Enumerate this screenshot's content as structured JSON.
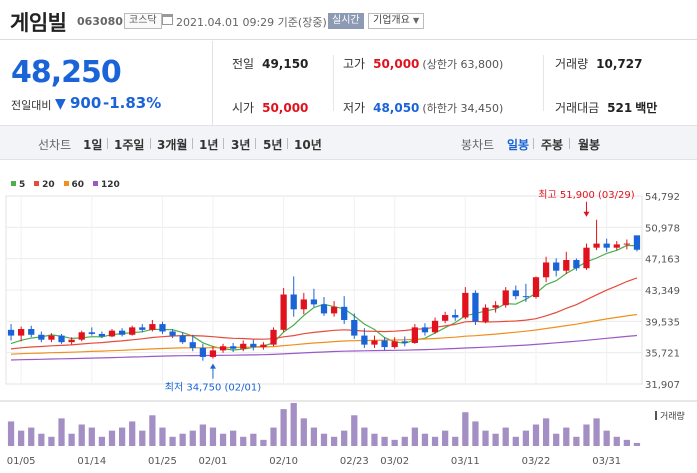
{
  "header": {
    "name": "게임빌",
    "code": "063080",
    "market": "코스닥",
    "datetime": "2021.04.01 09:29 기준(장중)",
    "realtime": "실시간",
    "company_info": "기업개요"
  },
  "summary": {
    "price": "48,250",
    "change_label": "전일대비",
    "change_value": "900",
    "change_pct": "-1.83%",
    "prev_close_label": "전일",
    "prev_close": "49,150",
    "high_label": "고가",
    "high": "50,000",
    "upper_limit": "(상한가 63,800)",
    "volume_label": "거래량",
    "volume": "10,727",
    "open_label": "시가",
    "open": "50,000",
    "low_label": "저가",
    "low": "48,050",
    "lower_limit": "(하한가 34,450)",
    "amount_label": "거래대금",
    "amount": "521",
    "amount_unit": "백만"
  },
  "periods": {
    "line_label": "선차트",
    "line_items": [
      "1일",
      "1주일",
      "3개월",
      "1년",
      "3년",
      "5년",
      "10년"
    ],
    "candle_label": "봉차트",
    "candle_items": [
      "일봉",
      "주봉",
      "월봉"
    ],
    "active": "일봉"
  },
  "legend": [
    {
      "label": "5",
      "color": "#4cae4c"
    },
    {
      "label": "20",
      "color": "#e64c3c"
    },
    {
      "label": "60",
      "color": "#f0901e"
    },
    {
      "label": "120",
      "color": "#9b59c8"
    }
  ],
  "chart_data": {
    "type": "candlestick",
    "y_ticks": [
      "54,792",
      "50,978",
      "47,163",
      "43,349",
      "39,535",
      "35,721",
      "31,907"
    ],
    "ylim": [
      31907,
      54792
    ],
    "x_ticks": [
      {
        "label": "01/05",
        "index": 1
      },
      {
        "label": "01/14",
        "index": 8
      },
      {
        "label": "01/25",
        "index": 15
      },
      {
        "label": "02/01",
        "index": 20
      },
      {
        "label": "02/10",
        "index": 27
      },
      {
        "label": "02/23",
        "index": 34
      },
      {
        "label": "03/02",
        "index": 38
      },
      {
        "label": "03/11",
        "index": 45
      },
      {
        "label": "03/22",
        "index": 52
      },
      {
        "label": "03/31",
        "index": 59
      }
    ],
    "max_annotation": {
      "text": "최고 51,900 (03/29)",
      "index": 57,
      "value": 51900
    },
    "min_annotation": {
      "text": "최저 34,750 (02/01)",
      "index": 20,
      "value": 34750
    },
    "volume_label": "거래량",
    "candles": [
      {
        "o": 38500,
        "h": 39200,
        "l": 37200,
        "c": 37800
      },
      {
        "o": 37800,
        "h": 38900,
        "l": 37100,
        "c": 38600
      },
      {
        "o": 38600,
        "h": 39000,
        "l": 37600,
        "c": 37900
      },
      {
        "o": 37900,
        "h": 38300,
        "l": 37000,
        "c": 37300
      },
      {
        "o": 37300,
        "h": 38100,
        "l": 37000,
        "c": 37800
      },
      {
        "o": 37800,
        "h": 38000,
        "l": 36800,
        "c": 37000
      },
      {
        "o": 37000,
        "h": 37600,
        "l": 36700,
        "c": 37300
      },
      {
        "o": 37300,
        "h": 38400,
        "l": 37100,
        "c": 38200
      },
      {
        "o": 38200,
        "h": 38800,
        "l": 37800,
        "c": 38000
      },
      {
        "o": 38000,
        "h": 38300,
        "l": 37500,
        "c": 37700
      },
      {
        "o": 37700,
        "h": 38600,
        "l": 37600,
        "c": 38400
      },
      {
        "o": 38400,
        "h": 38700,
        "l": 37700,
        "c": 37900
      },
      {
        "o": 37900,
        "h": 39000,
        "l": 37800,
        "c": 38800
      },
      {
        "o": 38800,
        "h": 39200,
        "l": 38200,
        "c": 38500
      },
      {
        "o": 38500,
        "h": 39700,
        "l": 38300,
        "c": 39200
      },
      {
        "o": 39200,
        "h": 39500,
        "l": 38000,
        "c": 38300
      },
      {
        "o": 38300,
        "h": 38600,
        "l": 37500,
        "c": 37800
      },
      {
        "o": 37800,
        "h": 38200,
        "l": 36800,
        "c": 37000
      },
      {
        "o": 37000,
        "h": 37900,
        "l": 35900,
        "c": 36300
      },
      {
        "o": 36300,
        "h": 36800,
        "l": 34750,
        "c": 35200
      },
      {
        "o": 35200,
        "h": 36500,
        "l": 35000,
        "c": 36000
      },
      {
        "o": 36000,
        "h": 36800,
        "l": 35700,
        "c": 36500
      },
      {
        "o": 36500,
        "h": 36900,
        "l": 35800,
        "c": 36200
      },
      {
        "o": 36200,
        "h": 37200,
        "l": 35900,
        "c": 36800
      },
      {
        "o": 36800,
        "h": 37300,
        "l": 36000,
        "c": 36400
      },
      {
        "o": 36400,
        "h": 37000,
        "l": 36100,
        "c": 36700
      },
      {
        "o": 36700,
        "h": 38800,
        "l": 36500,
        "c": 38500
      },
      {
        "o": 38500,
        "h": 43600,
        "l": 38200,
        "c": 42800
      },
      {
        "o": 42800,
        "h": 45000,
        "l": 40100,
        "c": 41000
      },
      {
        "o": 41000,
        "h": 43000,
        "l": 40400,
        "c": 42200
      },
      {
        "o": 42200,
        "h": 43500,
        "l": 41300,
        "c": 41600
      },
      {
        "o": 41600,
        "h": 42500,
        "l": 40200,
        "c": 40500
      },
      {
        "o": 40500,
        "h": 42000,
        "l": 40100,
        "c": 41300
      },
      {
        "o": 41300,
        "h": 42600,
        "l": 39200,
        "c": 39700
      },
      {
        "o": 39700,
        "h": 40500,
        "l": 37400,
        "c": 37800
      },
      {
        "o": 37800,
        "h": 38700,
        "l": 36300,
        "c": 36700
      },
      {
        "o": 36700,
        "h": 37800,
        "l": 36300,
        "c": 37200
      },
      {
        "o": 37200,
        "h": 37600,
        "l": 36000,
        "c": 36400
      },
      {
        "o": 36400,
        "h": 37600,
        "l": 36200,
        "c": 37100
      },
      {
        "o": 37100,
        "h": 37700,
        "l": 36500,
        "c": 36900
      },
      {
        "o": 36900,
        "h": 39200,
        "l": 36800,
        "c": 38800
      },
      {
        "o": 38800,
        "h": 39300,
        "l": 37800,
        "c": 38200
      },
      {
        "o": 38200,
        "h": 40000,
        "l": 38000,
        "c": 39600
      },
      {
        "o": 39600,
        "h": 40700,
        "l": 39300,
        "c": 40300
      },
      {
        "o": 40300,
        "h": 41000,
        "l": 39600,
        "c": 40000
      },
      {
        "o": 40000,
        "h": 43700,
        "l": 39800,
        "c": 43000
      },
      {
        "o": 43000,
        "h": 43300,
        "l": 39100,
        "c": 39500
      },
      {
        "o": 39500,
        "h": 41600,
        "l": 39300,
        "c": 41200
      },
      {
        "o": 41200,
        "h": 42000,
        "l": 40600,
        "c": 41500
      },
      {
        "o": 41500,
        "h": 43700,
        "l": 41200,
        "c": 43300
      },
      {
        "o": 43300,
        "h": 43900,
        "l": 42200,
        "c": 42600
      },
      {
        "o": 42600,
        "h": 44100,
        "l": 41900,
        "c": 42500
      },
      {
        "o": 42500,
        "h": 45000,
        "l": 42300,
        "c": 44900
      },
      {
        "o": 44900,
        "h": 47400,
        "l": 44300,
        "c": 46700
      },
      {
        "o": 46700,
        "h": 47200,
        "l": 45000,
        "c": 45700
      },
      {
        "o": 45700,
        "h": 48000,
        "l": 45300,
        "c": 47000
      },
      {
        "o": 47000,
        "h": 47200,
        "l": 45700,
        "c": 46000
      },
      {
        "o": 46000,
        "h": 49000,
        "l": 45800,
        "c": 48500
      },
      {
        "o": 48500,
        "h": 51900,
        "l": 48200,
        "c": 49000
      },
      {
        "o": 49000,
        "h": 49600,
        "l": 48000,
        "c": 48500
      },
      {
        "o": 48500,
        "h": 49300,
        "l": 48200,
        "c": 48900
      },
      {
        "o": 48900,
        "h": 49500,
        "l": 48300,
        "c": 49000
      },
      {
        "o": 50000,
        "h": 50000,
        "l": 48050,
        "c": 48250
      }
    ],
    "volumes": [
      8,
      5,
      6,
      4,
      3,
      9,
      4,
      7,
      6,
      3,
      5,
      6,
      8,
      5,
      10,
      6,
      3,
      4,
      5,
      7,
      6,
      4,
      5,
      3,
      4,
      2,
      6,
      12,
      14,
      9,
      6,
      4,
      3,
      5,
      10,
      6,
      4,
      3,
      2,
      3,
      6,
      4,
      3,
      5,
      3,
      11,
      8,
      5,
      4,
      6,
      3,
      5,
      7,
      9,
      4,
      6,
      3,
      7,
      9,
      5,
      3,
      2,
      1
    ]
  }
}
